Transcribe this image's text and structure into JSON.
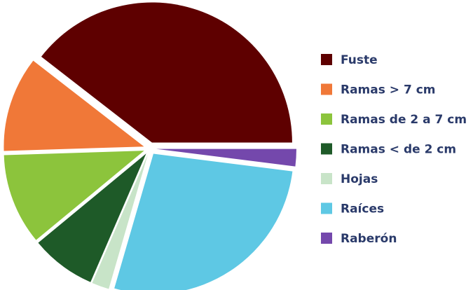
{
  "chart_data": {
    "type": "pie",
    "title": "",
    "categories": [
      "Fuste",
      "Ramas > 7 cm",
      "Ramas de 2 a 7 cm",
      "Ramas < de 2 cm",
      "Hojas",
      "Raíces",
      "Raberón"
    ],
    "values": [
      39.5,
      11.0,
      10.5,
      7.5,
      2.0,
      27.5,
      2.0
    ],
    "unit": "percent (estimated from slice angles)",
    "colors": [
      "#5e0000",
      "#f07838",
      "#8cc43c",
      "#1e5a28",
      "#c8e4c8",
      "#5ec8e4",
      "#7448ac"
    ],
    "exploded": true,
    "legend": {
      "position": "right",
      "text_color": "#2a3a6a"
    }
  }
}
